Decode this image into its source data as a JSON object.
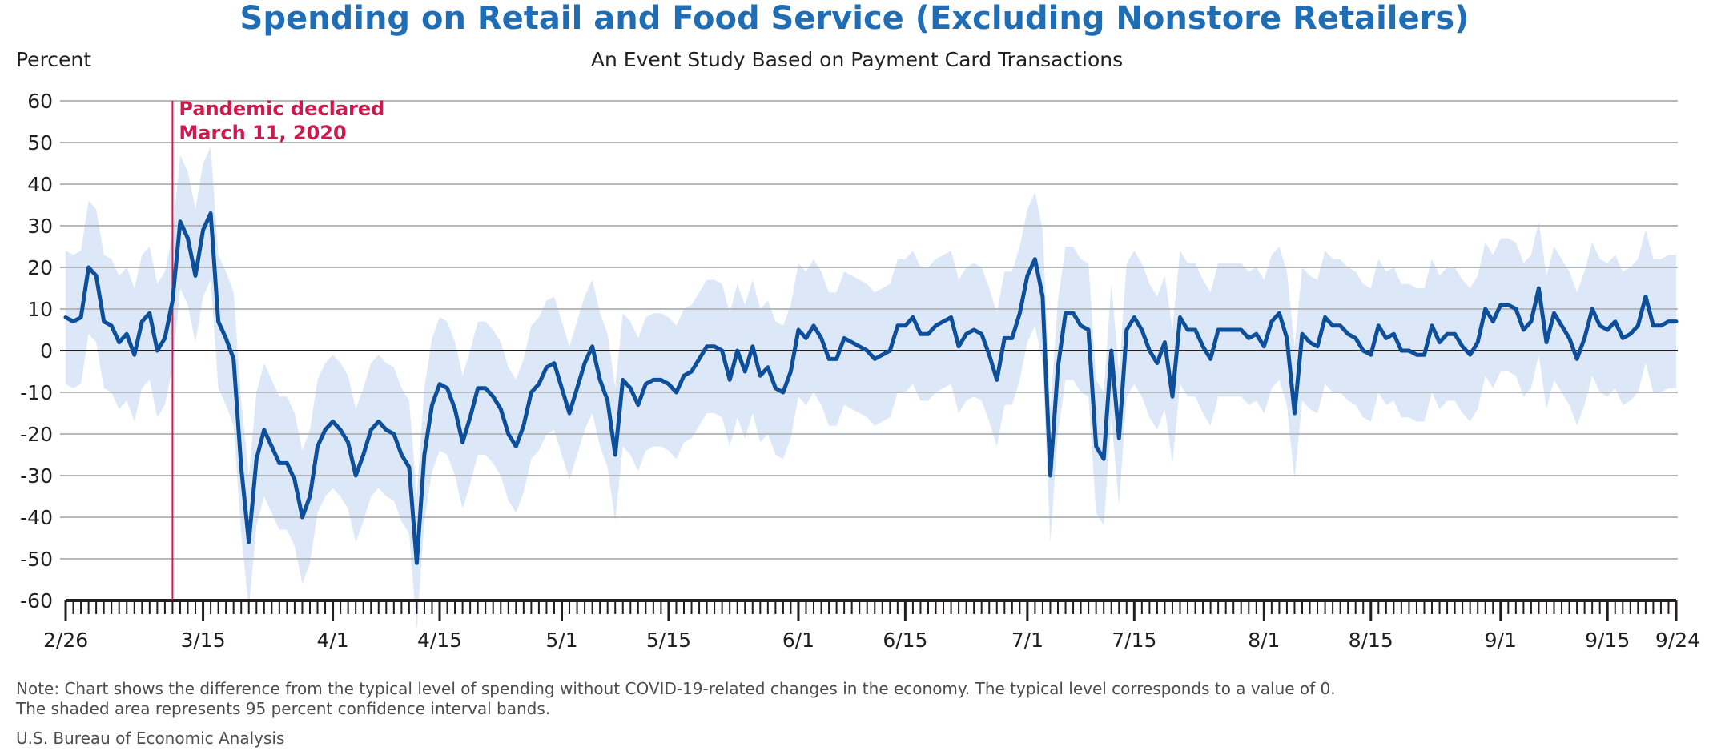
{
  "chart_data": {
    "type": "line",
    "title": "Spending on Retail and Food Service (Excluding Nonstore Retailers)",
    "subtitle": "An Event Study Based on Payment Card Transactions",
    "ylabel": "Percent",
    "xlabel": "",
    "ylim": [
      -60,
      60
    ],
    "yticks": [
      60,
      50,
      40,
      30,
      20,
      10,
      0,
      -10,
      -20,
      -30,
      -40,
      -50,
      -60
    ],
    "x_start": "2/26",
    "x_end": "9/24",
    "xticks": [
      {
        "label": "2/26",
        "day": 0
      },
      {
        "label": "3/15",
        "day": 18
      },
      {
        "label": "4/1",
        "day": 35
      },
      {
        "label": "4/15",
        "day": 49
      },
      {
        "label": "5/1",
        "day": 65
      },
      {
        "label": "5/15",
        "day": 79
      },
      {
        "label": "6/1",
        "day": 96
      },
      {
        "label": "6/15",
        "day": 110
      },
      {
        "label": "7/1",
        "day": 126
      },
      {
        "label": "7/15",
        "day": 140
      },
      {
        "label": "8/1",
        "day": 157
      },
      {
        "label": "8/15",
        "day": 171
      },
      {
        "label": "9/1",
        "day": 188
      },
      {
        "label": "9/15",
        "day": 202
      },
      {
        "label": "9/24",
        "day": 211
      }
    ],
    "grid": true,
    "series": [
      {
        "values": [
          8,
          7,
          8,
          20,
          18,
          7,
          6,
          2,
          4,
          -1,
          7,
          9,
          0,
          3,
          12,
          31,
          27,
          18,
          29,
          33,
          7,
          3,
          -2,
          -28,
          -46,
          -26,
          -19,
          -23,
          -27,
          -27,
          -31,
          -40,
          -35,
          -23,
          -19,
          -17,
          -19,
          -22,
          -30,
          -25,
          -19,
          -17,
          -19,
          -20,
          -25,
          -28,
          -51,
          -25,
          -13,
          -8,
          -9,
          -14,
          -22,
          -16,
          -9,
          -9,
          -11,
          -14,
          -20,
          -23,
          -18,
          -10,
          -8,
          -4,
          -3,
          -9,
          -15,
          -9,
          -3,
          1,
          -7,
          -12,
          -25,
          -7,
          -9,
          -13,
          -8,
          -7,
          -7,
          -8,
          -10,
          -6,
          -5,
          -2,
          1,
          1,
          0,
          -7,
          0,
          -5,
          1,
          -6,
          -4,
          -9,
          -10,
          -5,
          5,
          3,
          6,
          3,
          -2,
          -2,
          3,
          2,
          1,
          0,
          -2,
          -1,
          0,
          6,
          6,
          8,
          4,
          4,
          6,
          7,
          8,
          1,
          4,
          5,
          4,
          -1,
          -7,
          3,
          3,
          9,
          18,
          22,
          13,
          -30,
          -4,
          9,
          9,
          6,
          5,
          -23,
          -26,
          0,
          -21,
          5,
          8,
          5,
          0,
          -3,
          2,
          -11,
          8,
          5,
          5,
          1,
          -2,
          5,
          5,
          5,
          5,
          3,
          4,
          1,
          7,
          9,
          3,
          -15,
          4,
          2,
          1,
          8,
          6,
          6,
          4,
          3,
          0,
          -1,
          6,
          3,
          4,
          0,
          0,
          -1,
          -1,
          6,
          2,
          4,
          4,
          1,
          -1,
          2,
          10,
          7,
          11,
          11,
          10,
          5,
          7,
          15,
          2,
          9,
          6,
          3,
          -2,
          3,
          10,
          6,
          5,
          7,
          3,
          4,
          6,
          13,
          6,
          6,
          7,
          7
        ],
        "ci_half_width": 16
      }
    ],
    "annotations": [
      {
        "text_line1": "Pandemic declared",
        "text_line2": "March 11, 2020",
        "day": 14
      }
    ],
    "colors": {
      "line": "#0d4f9b",
      "band": "#dce8f7",
      "grid": "#b5b8bd",
      "zero": "#231f20",
      "annotation": "#d1174d",
      "title": "#1f6db5"
    }
  },
  "note_line1": "Note: Chart shows the difference from the typical level of spending without COVID-19-related changes in the economy. The typical level corresponds to a value of 0.",
  "note_line2": "The shaded area represents 95 percent confidence interval bands.",
  "source": "U.S. Bureau of Economic Analysis"
}
